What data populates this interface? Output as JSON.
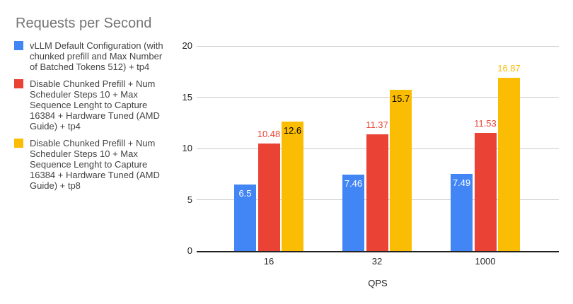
{
  "legend": {
    "items": [
      {
        "color": "#4285F4",
        "text": "vLLM Default Configuration (with\nchunked prefill and Max Number\nof Batched Tokens 512) + tp4"
      },
      {
        "color": "#EA4335",
        "text": "Disable Chunked Prefill + Num\nScheduler Steps 10 + Max\nSequence Lenght to Capture\n16384 + Hardware Tuned (AMD\nGuide) + tp4"
      },
      {
        "color": "#FBBC04",
        "text": "Disable Chunked Prefill + Num\nScheduler Steps 10 + Max\nSequence Lenght to Capture\n16384 + Hardware Tuned (AMD\nGuide) + tp8"
      }
    ]
  },
  "chart_data": {
    "type": "bar",
    "title": "Requests per Second",
    "xlabel": "QPS",
    "ylabel": "",
    "categories": [
      "16",
      "32",
      "1000"
    ],
    "ylim": [
      0,
      20
    ],
    "yticks": [
      0,
      5,
      10,
      15,
      20
    ],
    "grid": true,
    "legend_position": "left",
    "series": [
      {
        "id": "vllm-default-tp4",
        "name": "vLLM Default Configuration (with chunked prefill and Max Number of Batched Tokens 512) + tp4",
        "color": "#4285F4",
        "values": [
          6.5,
          7.46,
          7.49
        ],
        "data_labels": [
          {
            "text": "6.5",
            "placement": "inside",
            "color": "#ffffff"
          },
          {
            "text": "7.46",
            "placement": "inside",
            "color": "#ffffff"
          },
          {
            "text": "7.49",
            "placement": "inside",
            "color": "#ffffff"
          }
        ]
      },
      {
        "id": "amd-tuned-tp4",
        "name": "Disable Chunked Prefill + Num Scheduler Steps 10 + Max Sequence Lenght to Capture 16384 + Hardware Tuned (AMD Guide) + tp4",
        "color": "#EA4335",
        "values": [
          10.48,
          11.37,
          11.53
        ],
        "data_labels": [
          {
            "text": "10.48",
            "placement": "outside",
            "color": "#EA4335"
          },
          {
            "text": "11.37",
            "placement": "outside",
            "color": "#EA4335"
          },
          {
            "text": "11.53",
            "placement": "outside",
            "color": "#EA4335"
          }
        ]
      },
      {
        "id": "amd-tuned-tp8",
        "name": "Disable Chunked Prefill + Num Scheduler Steps 10 + Max Sequence Lenght to Capture 16384 + Hardware Tuned (AMD Guide) + tp8",
        "color": "#FBBC04",
        "values": [
          12.6,
          15.7,
          16.87
        ],
        "data_labels": [
          {
            "text": "12.6",
            "placement": "inside",
            "color": "#000000"
          },
          {
            "text": "15.7",
            "placement": "inside",
            "color": "#000000"
          },
          {
            "text": "16.87",
            "placement": "outside",
            "color": "#FBBC04"
          }
        ]
      }
    ]
  }
}
